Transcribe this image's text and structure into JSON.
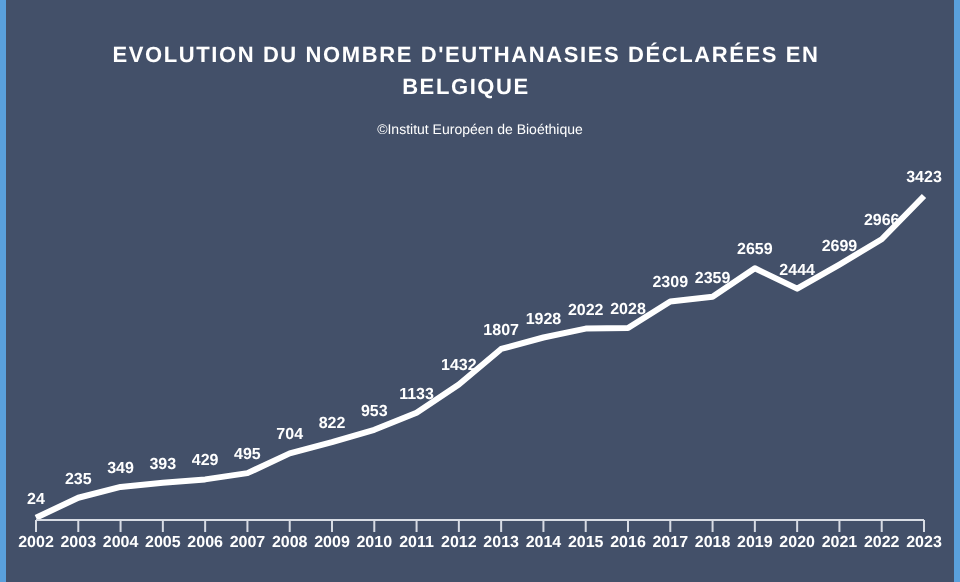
{
  "chart_data": {
    "type": "line",
    "title": "EVOLUTION DU NOMBRE D'EUTHANASIES DÉCLARÉES EN BELGIQUE",
    "subtitle": "©Institut Européen de Bioéthique",
    "categories": [
      "2002",
      "2003",
      "2004",
      "2005",
      "2006",
      "2007",
      "2008",
      "2009",
      "2010",
      "2011",
      "2012",
      "2013",
      "2014",
      "2015",
      "2016",
      "2017",
      "2018",
      "2019",
      "2020",
      "2021",
      "2022",
      "2023"
    ],
    "series": [
      {
        "color": "#ffffff",
        "values": [
          24,
          235,
          349,
          393,
          429,
          495,
          704,
          822,
          953,
          1133,
          1432,
          1807,
          1928,
          2022,
          2028,
          2309,
          2359,
          2659,
          2444,
          2699,
          2966,
          3423
        ]
      }
    ],
    "data_labels": true,
    "marker": "none",
    "line_style": "solid"
  }
}
